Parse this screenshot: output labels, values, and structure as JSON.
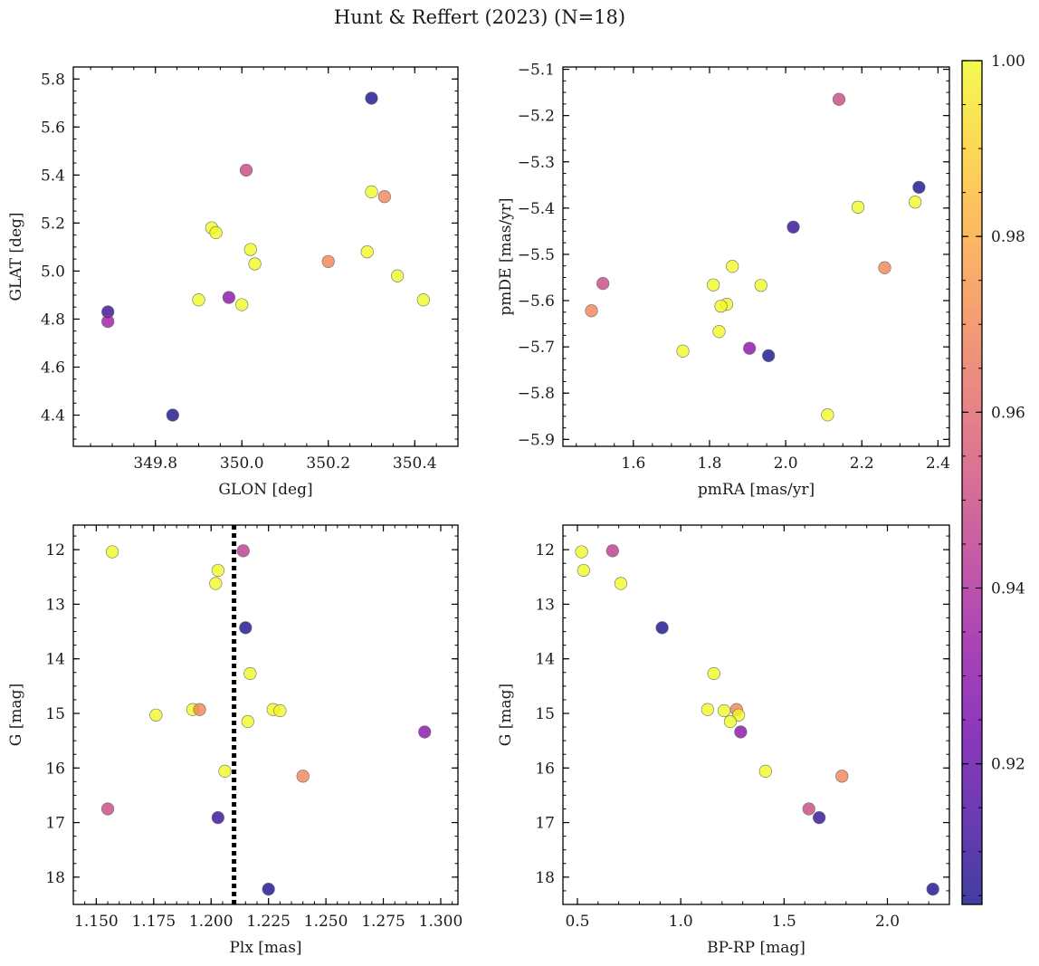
{
  "title": "Hunt & Reffert (2023) (N=18)",
  "colormap": [
    "#0d0887",
    "#3f049c",
    "#6a00a8",
    "#8f0da4",
    "#b12a90",
    "#cc4778",
    "#e16462",
    "#f2844b",
    "#fca636",
    "#fcce25",
    "#f0f921"
  ],
  "marker_alpha": 0.78,
  "colorbar": {
    "range": [
      0.904,
      1.0
    ],
    "ticks": [
      "1.00",
      "0.98",
      "0.96",
      "0.94",
      "0.92"
    ],
    "tick_values": [
      1.0,
      0.98,
      0.96,
      0.94,
      0.92
    ]
  },
  "chart_data": [
    {
      "type": "scatter",
      "xlabel": "GLON [deg]",
      "ylabel": "GLAT [deg]",
      "xlim": [
        349.61,
        350.5
      ],
      "ylim": [
        4.27,
        5.85
      ],
      "invert_y": false,
      "xticks": [
        349.8,
        350.0,
        350.2,
        350.4
      ],
      "xticklabels": [
        "349.8",
        "350.0",
        "350.2",
        "350.4"
      ],
      "xminor": 0.05,
      "yticks": [
        4.4,
        4.6,
        4.8,
        5.0,
        5.2,
        5.4,
        5.6,
        5.8
      ],
      "yticklabels": [
        "4.4",
        "4.6",
        "4.8",
        "5.0",
        "5.2",
        "5.4",
        "5.6",
        "5.8"
      ],
      "yminor": 0.05,
      "points": [
        {
          "x": 350.3,
          "y": 5.72,
          "c": 0.905
        },
        {
          "x": 350.01,
          "y": 5.42,
          "c": 0.95
        },
        {
          "x": 350.3,
          "y": 5.33,
          "c": 1.0
        },
        {
          "x": 350.33,
          "y": 5.31,
          "c": 0.97
        },
        {
          "x": 349.93,
          "y": 5.18,
          "c": 1.0
        },
        {
          "x": 349.94,
          "y": 5.16,
          "c": 1.0
        },
        {
          "x": 350.02,
          "y": 5.09,
          "c": 1.0
        },
        {
          "x": 350.29,
          "y": 5.08,
          "c": 1.0
        },
        {
          "x": 350.2,
          "y": 5.04,
          "c": 0.97
        },
        {
          "x": 350.03,
          "y": 5.03,
          "c": 1.0
        },
        {
          "x": 350.36,
          "y": 4.98,
          "c": 1.0
        },
        {
          "x": 349.9,
          "y": 4.88,
          "c": 1.0
        },
        {
          "x": 350.42,
          "y": 4.88,
          "c": 1.0
        },
        {
          "x": 349.97,
          "y": 4.89,
          "c": 0.93
        },
        {
          "x": 350.0,
          "y": 4.86,
          "c": 1.0
        },
        {
          "x": 349.69,
          "y": 4.83,
          "c": 0.91
        },
        {
          "x": 349.69,
          "y": 4.79,
          "c": 0.935
        },
        {
          "x": 349.84,
          "y": 4.4,
          "c": 0.905
        }
      ]
    },
    {
      "type": "scatter",
      "xlabel": "pmRA [mas/yr]",
      "ylabel": "pmDE [mas/yr]",
      "xlim": [
        1.415,
        2.43
      ],
      "ylim": [
        -5.915,
        -5.095
      ],
      "invert_y": false,
      "xticks": [
        1.6,
        1.8,
        2.0,
        2.2,
        2.4
      ],
      "xticklabels": [
        "1.6",
        "1.8",
        "2.0",
        "2.2",
        "2.4"
      ],
      "xminor": 0.05,
      "yticks": [
        -5.9,
        -5.8,
        -5.7,
        -5.6,
        -5.5,
        -5.4,
        -5.3,
        -5.2,
        -5.1
      ],
      "yticklabels": [
        "−5.9",
        "−5.8",
        "−5.7",
        "−5.6",
        "−5.5",
        "−5.4",
        "−5.3",
        "−5.2",
        "−5.1"
      ],
      "yminor": 0.025,
      "points": [
        {
          "x": 2.14,
          "y": -5.165,
          "c": 0.95
        },
        {
          "x": 2.35,
          "y": -5.355,
          "c": 0.905
        },
        {
          "x": 2.34,
          "y": -5.387,
          "c": 1.0
        },
        {
          "x": 2.19,
          "y": -5.398,
          "c": 1.0
        },
        {
          "x": 2.02,
          "y": -5.441,
          "c": 0.91
        },
        {
          "x": 1.86,
          "y": -5.526,
          "c": 1.0
        },
        {
          "x": 2.26,
          "y": -5.529,
          "c": 0.97
        },
        {
          "x": 1.52,
          "y": -5.563,
          "c": 0.95
        },
        {
          "x": 1.81,
          "y": -5.566,
          "c": 1.0
        },
        {
          "x": 1.935,
          "y": -5.567,
          "c": 1.0
        },
        {
          "x": 1.49,
          "y": -5.622,
          "c": 0.97
        },
        {
          "x": 1.845,
          "y": -5.608,
          "c": 1.0
        },
        {
          "x": 1.83,
          "y": -5.612,
          "c": 1.0
        },
        {
          "x": 1.825,
          "y": -5.667,
          "c": 1.0
        },
        {
          "x": 1.73,
          "y": -5.709,
          "c": 1.0
        },
        {
          "x": 1.905,
          "y": -5.703,
          "c": 0.93
        },
        {
          "x": 1.955,
          "y": -5.719,
          "c": 0.905
        },
        {
          "x": 2.11,
          "y": -5.847,
          "c": 1.0
        }
      ]
    },
    {
      "type": "scatter",
      "xlabel": "Plx [mas]",
      "ylabel": "G [mag]",
      "xlim": [
        1.14,
        1.3075
      ],
      "ylim": [
        18.5,
        11.55
      ],
      "invert_y": true,
      "xticks": [
        1.15,
        1.175,
        1.2,
        1.225,
        1.25,
        1.275,
        1.3
      ],
      "xticklabels": [
        "1.150",
        "1.175",
        "1.200",
        "1.225",
        "1.250",
        "1.275",
        "1.300"
      ],
      "xminor": 0.005,
      "yticks": [
        12,
        13,
        14,
        15,
        16,
        17,
        18
      ],
      "yticklabels": [
        "12",
        "13",
        "14",
        "15",
        "16",
        "17",
        "18"
      ],
      "yminor": 0.25,
      "vline": {
        "x": 1.21,
        "style": "dotted"
      },
      "points": [
        {
          "x": 1.157,
          "y": 12.04,
          "c": 1.0
        },
        {
          "x": 1.214,
          "y": 12.02,
          "c": 0.945
        },
        {
          "x": 1.203,
          "y": 12.38,
          "c": 1.0
        },
        {
          "x": 1.202,
          "y": 12.62,
          "c": 1.0
        },
        {
          "x": 1.215,
          "y": 13.43,
          "c": 0.905
        },
        {
          "x": 1.217,
          "y": 14.27,
          "c": 1.0
        },
        {
          "x": 1.192,
          "y": 14.93,
          "c": 1.0
        },
        {
          "x": 1.195,
          "y": 14.93,
          "c": 0.97
        },
        {
          "x": 1.227,
          "y": 14.93,
          "c": 1.0
        },
        {
          "x": 1.23,
          "y": 14.95,
          "c": 1.0
        },
        {
          "x": 1.176,
          "y": 15.03,
          "c": 1.0
        },
        {
          "x": 1.216,
          "y": 15.15,
          "c": 1.0
        },
        {
          "x": 1.293,
          "y": 15.34,
          "c": 0.93
        },
        {
          "x": 1.206,
          "y": 16.06,
          "c": 1.0
        },
        {
          "x": 1.24,
          "y": 16.15,
          "c": 0.97
        },
        {
          "x": 1.155,
          "y": 16.75,
          "c": 0.95
        },
        {
          "x": 1.203,
          "y": 16.91,
          "c": 0.91
        },
        {
          "x": 1.225,
          "y": 18.22,
          "c": 0.905
        }
      ]
    },
    {
      "type": "scatter",
      "xlabel": "BP-RP [mag]",
      "ylabel": "G [mag]",
      "xlim": [
        0.43,
        2.3
      ],
      "ylim": [
        18.5,
        11.55
      ],
      "invert_y": true,
      "xticks": [
        0.5,
        1.0,
        1.5,
        2.0
      ],
      "xticklabels": [
        "0.5",
        "1.0",
        "1.5",
        "2.0"
      ],
      "xminor": 0.1,
      "yticks": [
        12,
        13,
        14,
        15,
        16,
        17,
        18
      ],
      "yticklabels": [
        "12",
        "13",
        "14",
        "15",
        "16",
        "17",
        "18"
      ],
      "yminor": 0.25,
      "points": [
        {
          "x": 0.52,
          "y": 12.04,
          "c": 1.0
        },
        {
          "x": 0.67,
          "y": 12.02,
          "c": 0.945
        },
        {
          "x": 0.53,
          "y": 12.38,
          "c": 1.0
        },
        {
          "x": 0.71,
          "y": 12.62,
          "c": 1.0
        },
        {
          "x": 0.91,
          "y": 13.43,
          "c": 0.905
        },
        {
          "x": 1.16,
          "y": 14.27,
          "c": 1.0
        },
        {
          "x": 1.13,
          "y": 14.93,
          "c": 1.0
        },
        {
          "x": 1.27,
          "y": 14.93,
          "c": 0.97
        },
        {
          "x": 1.21,
          "y": 14.95,
          "c": 1.0
        },
        {
          "x": 1.28,
          "y": 15.03,
          "c": 1.0
        },
        {
          "x": 1.24,
          "y": 15.15,
          "c": 1.0
        },
        {
          "x": 1.29,
          "y": 15.34,
          "c": 0.93
        },
        {
          "x": 1.41,
          "y": 16.06,
          "c": 1.0
        },
        {
          "x": 1.78,
          "y": 16.15,
          "c": 0.97
        },
        {
          "x": 1.62,
          "y": 16.75,
          "c": 0.95
        },
        {
          "x": 1.67,
          "y": 16.91,
          "c": 0.91
        },
        {
          "x": 2.22,
          "y": 18.22,
          "c": 0.905
        }
      ]
    }
  ]
}
